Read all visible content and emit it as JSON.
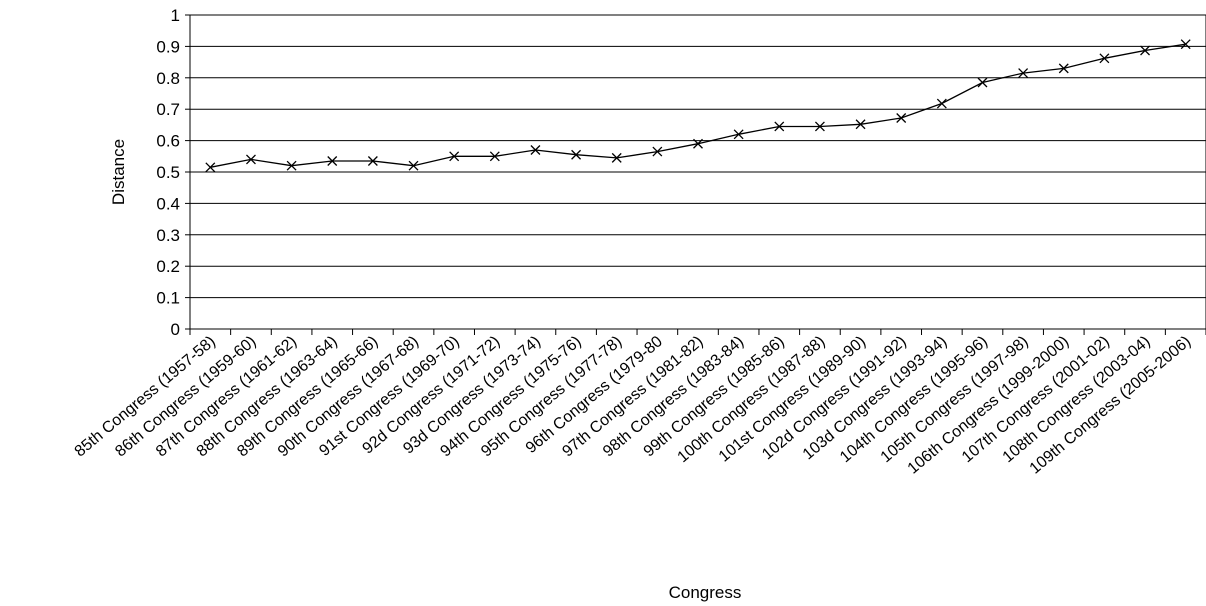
{
  "chart_data": {
    "type": "line",
    "title": "",
    "xlabel": "Congress",
    "ylabel": "Distance",
    "ylim": [
      0,
      1
    ],
    "yticks": [
      "0",
      "0.1",
      "0.2",
      "0.3",
      "0.4",
      "0.5",
      "0.6",
      "0.7",
      "0.8",
      "0.9",
      "1"
    ],
    "grid": true,
    "legend": "none",
    "marker": "x",
    "colors": {
      "line": "#000000",
      "grid": "#000000",
      "background": "#ffffff"
    },
    "categories": [
      "85th Congress (1957-58)",
      "86th Congress (1959-60)",
      "87th Congress (1961-62)",
      "88th Congress (1963-64)",
      "89th Congress (1965-66)",
      "90th Congress (1967-68)",
      "91st Congress (1969-70)",
      "92d Congress (1971-72)",
      "93d Congress (1973-74)",
      "94th Congress (1975-76)",
      "95th Congress (1977-78)",
      "96th Congress (1979-80",
      "97th Congress (1981-82)",
      "98th Congress (1983-84)",
      "99th Congress (1985-86)",
      "100th Congress (1987-88)",
      "101st Congress (1989-90)",
      "102d Congress (1991-92)",
      "103d Congress (1993-94)",
      "104th Congress (1995-96)",
      "105th Congress (1997-98)",
      "106th Congress (1999-2000)",
      "107th Congress (2001-02)",
      "108th Congress (2003-04)",
      "109th Congress (2005-2006)"
    ],
    "series": [
      {
        "values": [
          0.515,
          0.54,
          0.52,
          0.535,
          0.535,
          0.52,
          0.55,
          0.55,
          0.57,
          0.555,
          0.545,
          0.565,
          0.59,
          0.62,
          0.645,
          0.645,
          0.652,
          0.672,
          0.718,
          0.785,
          0.815,
          0.83,
          0.862,
          0.887,
          0.907
        ]
      }
    ]
  }
}
